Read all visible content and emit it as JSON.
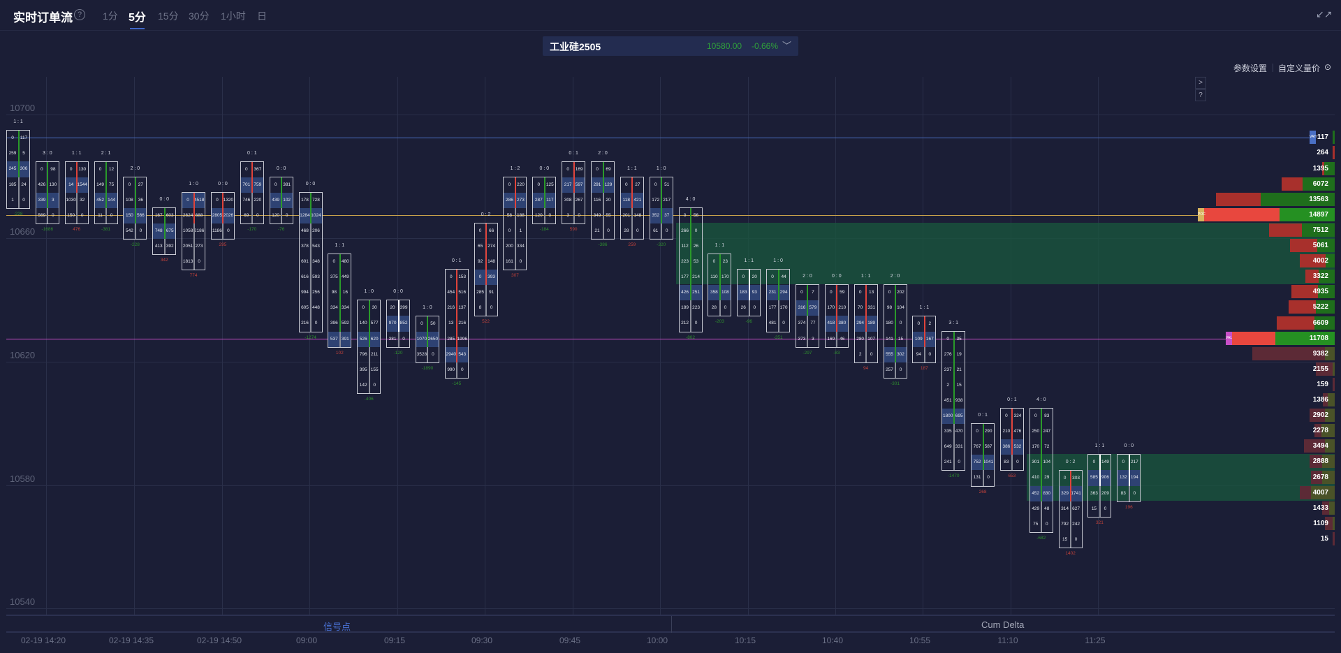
{
  "header": {
    "title": "实时订单流",
    "help_icon": "?",
    "tabs": [
      {
        "label": "1分"
      },
      {
        "label": "5分",
        "active": true
      },
      {
        "label": "15分"
      },
      {
        "label": "30分"
      },
      {
        "label": "1小时"
      },
      {
        "label": "日"
      }
    ],
    "expand_icon": "↙↗"
  },
  "instrument": {
    "symbol": "工业硅2505",
    "price": "10580.00",
    "change": "-0.66%",
    "chevron": "﹀"
  },
  "toolbar": {
    "params": "参数设置",
    "custom": "自定义量价",
    "custom_icon": "⊙",
    "side_expand": ">",
    "side_help": "?"
  },
  "y_axis": {
    "labels": [
      "10700",
      "10660",
      "10620",
      "10580",
      "10540"
    ],
    "prices": [
      10700,
      10660,
      10620,
      10580,
      10540
    ]
  },
  "x_axis": {
    "labels": [
      "02-19 14:20",
      "02-19 14:35",
      "02-19 14:50",
      "09:00",
      "09:15",
      "09:30",
      "09:45",
      "10:00",
      "10:15",
      "10:40",
      "10:55",
      "11:10",
      "11:25"
    ]
  },
  "levels": [
    {
      "label": "VAH",
      "price": 10690,
      "color": "#4a6fc4"
    },
    {
      "label": "POC",
      "price": 10665,
      "color": "#c9a24a"
    },
    {
      "label": "VAL",
      "price": 10625,
      "color": "#c84fc8"
    }
  ],
  "zones": [
    {
      "top_price": 10660,
      "bottom_price": 10645,
      "start_candle": 23
    },
    {
      "top_price": 10585,
      "bottom_price": 10575,
      "start_candle": 35
    }
  ],
  "candles": [
    {
      "ratio": "1 : 1",
      "top": 10690,
      "bar": "green",
      "hl": 2,
      "delta": "-228",
      "dc": "green",
      "rows": [
        [
          0,
          117
        ],
        [
          259,
          5
        ],
        [
          245,
          306
        ],
        [
          185,
          24
        ],
        [
          1,
          0
        ]
      ]
    },
    {
      "ratio": "3 : 0",
      "top": 10680,
      "bar": "green",
      "hl": 2,
      "delta": "-1686",
      "dc": "green",
      "rows": [
        [
          0,
          98
        ],
        [
          426,
          130
        ],
        [
          339,
          3
        ],
        [
          569,
          0
        ]
      ]
    },
    {
      "ratio": "1 : 1",
      "top": 10680,
      "bar": "red",
      "hl": 1,
      "delta": "476",
      "dc": "red",
      "rows": [
        [
          0,
          130
        ],
        [
          14,
          1544
        ],
        [
          1030,
          32
        ],
        [
          150,
          0
        ]
      ]
    },
    {
      "ratio": "2 : 1",
      "top": 10680,
      "bar": "green",
      "hl": 2,
      "delta": "-381",
      "dc": "green",
      "rows": [
        [
          0,
          12
        ],
        [
          149,
          75
        ],
        [
          452,
          144
        ],
        [
          11,
          0
        ]
      ]
    },
    {
      "ratio": "2 : 0",
      "top": 10675,
      "bar": "green",
      "hl": 2,
      "delta": "-228",
      "dc": "green",
      "rows": [
        [
          0,
          27
        ],
        [
          108,
          36
        ],
        [
          150,
          566
        ],
        [
          542,
          0
        ]
      ]
    },
    {
      "ratio": "0 : 0",
      "top": 10665,
      "bar": "green",
      "hl": 1,
      "delta": "342",
      "dc": "red",
      "rows": [
        [
          167,
          603
        ],
        [
          748,
          675
        ],
        [
          413,
          392
        ]
      ]
    },
    {
      "ratio": "1 : 0",
      "top": 10670,
      "bar": "red",
      "hl": 0,
      "delta": "774",
      "dc": "red",
      "rows": [
        [
          0,
          4518
        ],
        [
          2624,
          688
        ],
        [
          1058,
          2186
        ],
        [
          2051,
          273
        ],
        [
          1813,
          0
        ]
      ]
    },
    {
      "ratio": "0 : 0",
      "top": 10670,
      "bar": "red",
      "hl": 1,
      "delta": "295",
      "dc": "red",
      "rows": [
        [
          0,
          1320
        ],
        [
          2805,
          2026
        ],
        [
          1186,
          0
        ]
      ]
    },
    {
      "ratio": "0 : 1",
      "top": 10680,
      "bar": "red",
      "hl": 1,
      "delta": "-170",
      "dc": "green",
      "rows": [
        [
          0,
          367
        ],
        [
          701,
          759
        ],
        [
          746,
          220
        ],
        [
          69,
          0
        ]
      ]
    },
    {
      "ratio": "0 : 0",
      "top": 10675,
      "bar": "green",
      "hl": 1,
      "delta": "-76",
      "dc": "green",
      "rows": [
        [
          0,
          381
        ],
        [
          439,
          102
        ],
        [
          120,
          0
        ]
      ]
    },
    {
      "ratio": "0 : 0",
      "top": 10670,
      "bar": "green",
      "hl": 1,
      "delta": "-1274",
      "dc": "green",
      "rows": [
        [
          178,
          728
        ],
        [
          1284,
          1024
        ],
        [
          468,
          206
        ],
        [
          378,
          543
        ],
        [
          601,
          348
        ],
        [
          616,
          593
        ],
        [
          994,
          256
        ],
        [
          605,
          448
        ],
        [
          216,
          0
        ]
      ]
    },
    {
      "ratio": "1 : 1",
      "top": 10650,
      "bar": "green",
      "hl": 5,
      "delta": "102",
      "dc": "red",
      "rows": [
        [
          0,
          480
        ],
        [
          375,
          449
        ],
        [
          98,
          16
        ],
        [
          334,
          334
        ],
        [
          396,
          592
        ],
        [
          537,
          391
        ]
      ]
    },
    {
      "ratio": "1 : 0",
      "top": 10635,
      "bar": "green",
      "hl": 2,
      "delta": "-406",
      "dc": "green",
      "rows": [
        [
          0,
          30
        ],
        [
          140,
          577
        ],
        [
          526,
          620
        ],
        [
          796,
          211
        ],
        [
          395,
          155
        ],
        [
          142,
          0
        ]
      ]
    },
    {
      "ratio": "0 : 0",
      "top": 10635,
      "bar": "white",
      "hl": 1,
      "delta": "-120",
      "dc": "green",
      "rows": [
        [
          20,
          399
        ],
        [
          970,
          852
        ],
        [
          381,
          0
        ]
      ]
    },
    {
      "ratio": "1 : 0",
      "top": 10630,
      "bar": "green",
      "hl": 1,
      "delta": "-1890",
      "dc": "green",
      "rows": [
        [
          0,
          50
        ],
        [
          1070,
          2650
        ],
        [
          3528,
          0
        ]
      ]
    },
    {
      "ratio": "0 : 1",
      "top": 10645,
      "bar": "red",
      "hl": 5,
      "delta": "-145",
      "dc": "green",
      "rows": [
        [
          0,
          153
        ],
        [
          454,
          516
        ],
        [
          216,
          137
        ],
        [
          13,
          216
        ],
        [
          285,
          1996
        ],
        [
          2940,
          543
        ],
        [
          990,
          0
        ]
      ]
    },
    {
      "ratio": "0 : 2",
      "top": 10660,
      "bar": "red",
      "hl": 3,
      "delta": "522",
      "dc": "red",
      "rows": [
        [
          0,
          66
        ],
        [
          65,
          274
        ],
        [
          92,
          148
        ],
        [
          0,
          393
        ],
        [
          285,
          91
        ],
        [
          8,
          0
        ]
      ]
    },
    {
      "ratio": "1 : 2",
      "top": 10675,
      "bar": "red",
      "hl": 1,
      "delta": "307",
      "dc": "red",
      "rows": [
        [
          0,
          220
        ],
        [
          286,
          273
        ],
        [
          58,
          188
        ],
        [
          0,
          1
        ],
        [
          200,
          334
        ],
        [
          161,
          0
        ]
      ]
    },
    {
      "ratio": "0 : 0",
      "top": 10675,
      "bar": "green",
      "hl": 1,
      "delta": "-184",
      "dc": "green",
      "rows": [
        [
          0,
          125
        ],
        [
          287,
          117
        ],
        [
          120,
          0
        ]
      ]
    },
    {
      "ratio": "0 : 1",
      "top": 10680,
      "bar": "red",
      "hl": 1,
      "delta": "590",
      "dc": "red",
      "rows": [
        [
          0,
          169
        ],
        [
          217,
          597
        ],
        [
          308,
          267
        ],
        [
          3,
          0
        ]
      ]
    },
    {
      "ratio": "2 : 0",
      "top": 10680,
      "bar": "green",
      "hl": 1,
      "delta": "-386",
      "dc": "green",
      "rows": [
        [
          0,
          69
        ],
        [
          291,
          129
        ],
        [
          116,
          20
        ],
        [
          349,
          55
        ],
        [
          21,
          0
        ]
      ]
    },
    {
      "ratio": "1 : 1",
      "top": 10675,
      "bar": "red",
      "hl": 1,
      "delta": "259",
      "dc": "red",
      "rows": [
        [
          0,
          27
        ],
        [
          118,
          421
        ],
        [
          201,
          148
        ],
        [
          28,
          0
        ]
      ]
    },
    {
      "ratio": "1 : 0",
      "top": 10675,
      "bar": "green",
      "hl": 2,
      "delta": "-320",
      "dc": "green",
      "rows": [
        [
          0,
          51
        ],
        [
          172,
          217
        ],
        [
          352,
          37
        ],
        [
          61,
          0
        ]
      ]
    },
    {
      "ratio": "4 : 0",
      "top": 10665,
      "bar": "green",
      "hl": 5,
      "delta": "-802",
      "dc": "green",
      "rows": [
        [
          0,
          56
        ],
        [
          266,
          0
        ],
        [
          112,
          26
        ],
        [
          223,
          53
        ],
        [
          177,
          214
        ],
        [
          426,
          251
        ],
        [
          189,
          223
        ],
        [
          212,
          0
        ]
      ]
    },
    {
      "ratio": "1 : 1",
      "top": 10650,
      "bar": "green",
      "hl": 2,
      "delta": "-203",
      "dc": "green",
      "rows": [
        [
          0,
          23
        ],
        [
          110,
          170
        ],
        [
          358,
          108
        ],
        [
          28,
          0
        ]
      ]
    },
    {
      "ratio": "1 : 1",
      "top": 10645,
      "bar": "white",
      "hl": 1,
      "delta": "-96",
      "dc": "green",
      "rows": [
        [
          0,
          20
        ],
        [
          183,
          93
        ],
        [
          26,
          0
        ]
      ]
    },
    {
      "ratio": "1 : 0",
      "top": 10645,
      "bar": "green",
      "hl": 1,
      "delta": "-351",
      "dc": "green",
      "rows": [
        [
          0,
          44
        ],
        [
          231,
          294
        ],
        [
          177,
          170
        ],
        [
          481,
          0
        ]
      ]
    },
    {
      "ratio": "2 : 0",
      "top": 10640,
      "bar": "green",
      "hl": 1,
      "delta": "-297",
      "dc": "green",
      "rows": [
        [
          0,
          7
        ],
        [
          316,
          579
        ],
        [
          374,
          77
        ],
        [
          373,
          3
        ]
      ]
    },
    {
      "ratio": "0 : 0",
      "top": 10640,
      "bar": "red",
      "hl": 2,
      "delta": "-83",
      "dc": "green",
      "rows": [
        [
          0,
          59
        ],
        [
          170,
          210
        ],
        [
          418,
          380
        ],
        [
          169,
          46
        ]
      ]
    },
    {
      "ratio": "1 : 1",
      "top": 10640,
      "bar": "red",
      "hl": 2,
      "delta": "94",
      "dc": "red",
      "rows": [
        [
          0,
          13
        ],
        [
          70,
          331
        ],
        [
          294,
          189
        ],
        [
          280,
          107
        ],
        [
          2,
          0
        ]
      ]
    },
    {
      "ratio": "2 : 0",
      "top": 10640,
      "bar": "green",
      "hl": 4,
      "delta": "-301",
      "dc": "green",
      "rows": [
        [
          0,
          202
        ],
        [
          98,
          104
        ],
        [
          180,
          0
        ],
        [
          141,
          15
        ],
        [
          555,
          302
        ],
        [
          257,
          0
        ]
      ]
    },
    {
      "ratio": "1 : 1",
      "top": 10630,
      "bar": "red",
      "hl": 1,
      "delta": "187",
      "dc": "red",
      "rows": [
        [
          0,
          2
        ],
        [
          109,
          167
        ],
        [
          94,
          0
        ]
      ]
    },
    {
      "ratio": "3 : 1",
      "top": 10625,
      "bar": "green",
      "hl": 5,
      "delta": "-1470",
      "dc": "green",
      "rows": [
        [
          0,
          35
        ],
        [
          276,
          19
        ],
        [
          237,
          21
        ],
        [
          2,
          15
        ],
        [
          451,
          938
        ],
        [
          1800,
          695
        ],
        [
          335,
          470
        ],
        [
          649,
          331
        ],
        [
          241,
          0
        ]
      ]
    },
    {
      "ratio": "0 : 1",
      "top": 10595,
      "bar": "green",
      "hl": 2,
      "delta": "268",
      "dc": "red",
      "rows": [
        [
          0,
          290
        ],
        [
          767,
          587
        ],
        [
          752,
          1041
        ],
        [
          131,
          0
        ]
      ]
    },
    {
      "ratio": "0 : 1",
      "top": 10600,
      "bar": "red",
      "hl": 2,
      "delta": "653",
      "dc": "red",
      "rows": [
        [
          0,
          324
        ],
        [
          210,
          476
        ],
        [
          386,
          532
        ],
        [
          83,
          0
        ]
      ]
    },
    {
      "ratio": "4 : 0",
      "top": 10600,
      "bar": "green",
      "hl": 5,
      "delta": "-682",
      "dc": "green",
      "rows": [
        [
          0,
          83
        ],
        [
          250,
          247
        ],
        [
          170,
          72
        ],
        [
          301,
          104
        ],
        [
          410,
          29
        ],
        [
          452,
          830
        ],
        [
          429,
          48
        ],
        [
          75,
          0
        ]
      ]
    },
    {
      "ratio": "0 : 2",
      "top": 10580,
      "bar": "red",
      "hl": 1,
      "delta": "1402",
      "dc": "red",
      "rows": [
        [
          0,
          303
        ],
        [
          329,
          1741
        ],
        [
          314,
          627
        ],
        [
          792,
          242
        ],
        [
          15,
          0
        ]
      ]
    },
    {
      "ratio": "1 : 1",
      "top": 10585,
      "bar": "white",
      "hl": 1,
      "delta": "321",
      "dc": "red",
      "rows": [
        [
          0,
          149
        ],
        [
          585,
          906
        ],
        [
          363,
          209
        ],
        [
          15,
          0
        ]
      ]
    },
    {
      "ratio": "0 : 0",
      "top": 10585,
      "bar": "white",
      "hl": 1,
      "delta": "196",
      "dc": "red",
      "rows": [
        [
          0,
          217
        ],
        [
          132,
          194
        ],
        [
          83,
          0
        ]
      ]
    }
  ],
  "volume_profile": {
    "top_price": 10690,
    "max": 14897,
    "rows": [
      {
        "total": "117",
        "green": 1.0
      },
      {
        "total": "264",
        "green": 0
      },
      {
        "total": "1395",
        "green": 0.85
      },
      {
        "total": "6072",
        "green": 0.6
      },
      {
        "total": "13563",
        "green": 0.62
      },
      {
        "total": "14897",
        "green": 0.42,
        "tag": "POC"
      },
      {
        "total": "7512",
        "green": 0.5
      },
      {
        "total": "5061",
        "green": 0.4
      },
      {
        "total": "4002",
        "green": 0.26
      },
      {
        "total": "3322",
        "green": 0.55
      },
      {
        "total": "4935",
        "green": 0.39
      },
      {
        "total": "5222",
        "green": 0.41
      },
      {
        "total": "6609",
        "green": 0.35
      },
      {
        "total": "11708",
        "green": 0.58,
        "tag": "VAL"
      },
      {
        "total": "9382",
        "green": 0.12,
        "dim": true
      },
      {
        "total": "2155",
        "green": 0.1,
        "dim": true
      },
      {
        "total": "159",
        "green": 0,
        "dim": true
      },
      {
        "total": "1386",
        "green": 0.6,
        "dim": true
      },
      {
        "total": "2902",
        "green": 0.38,
        "dim": true
      },
      {
        "total": "2278",
        "green": 0.65,
        "dim": true
      },
      {
        "total": "3494",
        "green": 0.32,
        "dim": true
      },
      {
        "total": "2888",
        "green": 0.5,
        "dim": true
      },
      {
        "total": "2678",
        "green": 0.55,
        "dim": true
      },
      {
        "total": "4007",
        "green": 0.68,
        "dim": true
      },
      {
        "total": "1433",
        "green": 0.45,
        "dim": true
      },
      {
        "total": "1109",
        "green": 0.18,
        "dim": true
      },
      {
        "total": "15",
        "green": 0,
        "dim": true
      }
    ],
    "vah_tag": "VAH"
  },
  "panels": {
    "signals": "信号点",
    "cum_delta": "Cum Delta"
  },
  "colors": {
    "bg": "#1b1e36",
    "green": "#238a22",
    "red": "#a8302c",
    "highlight": "#2e4273",
    "accent": "#3f66c8"
  }
}
